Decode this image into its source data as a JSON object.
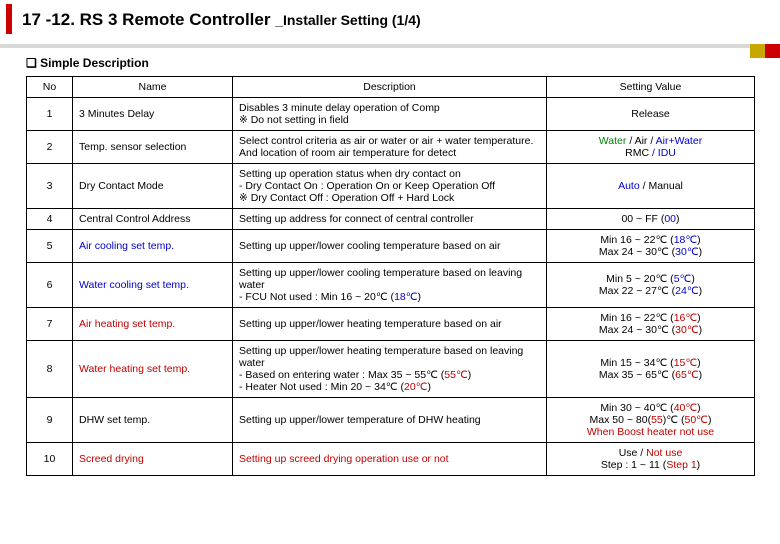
{
  "header": {
    "title": "17 -12. RS 3 Remote Controller",
    "subtitle": "_Installer Setting (1/4)"
  },
  "section": {
    "heading": "Simple Description"
  },
  "columns": {
    "c1": "No",
    "c2": "Name",
    "c3": "Description",
    "c4": "Setting Value"
  },
  "rows": [
    {
      "no": "1",
      "name": [
        {
          "t": "3 Minutes Delay",
          "c": "black"
        }
      ],
      "desc": [
        {
          "t": "Disables 3 minute delay operation of Comp\n※ Do not setting in field",
          "c": "black"
        }
      ],
      "val": [
        {
          "t": "Release",
          "c": "black"
        }
      ]
    },
    {
      "no": "2",
      "name": [
        {
          "t": "Temp. sensor selection",
          "c": "black"
        }
      ],
      "desc": [
        {
          "t": "Select control criteria as air or water or air + water temperature.\nAnd location of room air temperature for detect",
          "c": "black"
        }
      ],
      "val": [
        {
          "t": "Water",
          "c": "green"
        },
        {
          "t": " / Air",
          "c": "black"
        },
        {
          "t": " / ",
          "c": "black"
        },
        {
          "t": "Air+Water",
          "c": "blue"
        },
        {
          "t": "\nRMC",
          "c": "black"
        },
        {
          "t": " / IDU",
          "c": "blue"
        }
      ]
    },
    {
      "no": "3",
      "name": [
        {
          "t": "Dry Contact Mode",
          "c": "black"
        }
      ],
      "desc": [
        {
          "t": "Setting up operation status when dry contact on\n- Dry Contact On : Operation On or Keep Operation Off\n※ Dry Contact Off : Operation Off + Hard Lock",
          "c": "black"
        }
      ],
      "val": [
        {
          "t": "Auto",
          "c": "blue"
        },
        {
          "t": " / Manual",
          "c": "black"
        }
      ]
    },
    {
      "no": "4",
      "name": [
        {
          "t": "Central Control Address",
          "c": "black"
        }
      ],
      "desc": [
        {
          "t": "Setting up address for connect of central controller",
          "c": "black"
        }
      ],
      "val": [
        {
          "t": "00 ~ FF (",
          "c": "black"
        },
        {
          "t": "00",
          "c": "blue"
        },
        {
          "t": ")",
          "c": "black"
        }
      ]
    },
    {
      "no": "5",
      "name": [
        {
          "t": "Air cooling set temp.",
          "c": "blue"
        }
      ],
      "desc": [
        {
          "t": "Setting up upper/lower cooling temperature based on air",
          "c": "black"
        }
      ],
      "val": [
        {
          "t": "Min 16 ~ 22℃ (",
          "c": "black"
        },
        {
          "t": "18℃",
          "c": "blue"
        },
        {
          "t": ")\nMax 24 ~ 30℃ (",
          "c": "black"
        },
        {
          "t": "30℃",
          "c": "blue"
        },
        {
          "t": ")",
          "c": "black"
        }
      ]
    },
    {
      "no": "6",
      "name": [
        {
          "t": "Water cooling set temp.",
          "c": "blue"
        }
      ],
      "desc": [
        {
          "t": "Setting up upper/lower cooling temperature based on leaving water\n- FCU Not used : Min 16 ~ 20℃  (",
          "c": "black"
        },
        {
          "t": "18℃",
          "c": "blue"
        },
        {
          "t": ")",
          "c": "black"
        }
      ],
      "val": [
        {
          "t": "Min 5 ~ 20℃  (",
          "c": "black"
        },
        {
          "t": "5℃",
          "c": "blue"
        },
        {
          "t": ")\nMax 22 ~ 27℃ (",
          "c": "black"
        },
        {
          "t": "24℃",
          "c": "blue"
        },
        {
          "t": ")",
          "c": "black"
        }
      ]
    },
    {
      "no": "7",
      "name": [
        {
          "t": "Air heating set temp.",
          "c": "red"
        }
      ],
      "desc": [
        {
          "t": "Setting up upper/lower heating temperature based on air",
          "c": "black"
        }
      ],
      "val": [
        {
          "t": "Min 16 ~ 22℃ (",
          "c": "black"
        },
        {
          "t": "16℃",
          "c": "red"
        },
        {
          "t": ")\nMax 24 ~ 30℃ (",
          "c": "black"
        },
        {
          "t": "30℃",
          "c": "red"
        },
        {
          "t": ")",
          "c": "black"
        }
      ]
    },
    {
      "no": "8",
      "name": [
        {
          "t": "Water heating set temp.",
          "c": "red"
        }
      ],
      "desc": [
        {
          "t": "Setting up upper/lower heating temperature based on leaving water\n- Based on entering water : Max 35 ~ 55℃ (",
          "c": "black"
        },
        {
          "t": "55℃",
          "c": "red"
        },
        {
          "t": ")\n- Heater Not used :  Min 20 ~ 34℃ (",
          "c": "black"
        },
        {
          "t": "20℃",
          "c": "red"
        },
        {
          "t": ")",
          "c": "black"
        }
      ],
      "val": [
        {
          "t": "Min 15 ~ 34℃ (",
          "c": "black"
        },
        {
          "t": "15℃",
          "c": "red"
        },
        {
          "t": ")\nMax 35 ~ 65℃ (",
          "c": "black"
        },
        {
          "t": "65℃",
          "c": "red"
        },
        {
          "t": ")",
          "c": "black"
        }
      ]
    },
    {
      "no": "9",
      "name": [
        {
          "t": "DHW set temp.",
          "c": "black"
        }
      ],
      "desc": [
        {
          "t": "Setting up upper/lower temperature of DHW heating",
          "c": "black"
        }
      ],
      "val": [
        {
          "t": "Min 30 ~ 40℃ (",
          "c": "black"
        },
        {
          "t": "40℃",
          "c": "red"
        },
        {
          "t": ")\nMax 50 ~ 80(",
          "c": "black"
        },
        {
          "t": "55",
          "c": "red"
        },
        {
          "t": ")℃ (",
          "c": "black"
        },
        {
          "t": "50℃",
          "c": "red"
        },
        {
          "t": ")\n",
          "c": "black"
        },
        {
          "t": "When Boost heater not use",
          "c": "red"
        }
      ]
    },
    {
      "no": "10",
      "name": [
        {
          "t": "Screed drying",
          "c": "red"
        }
      ],
      "desc": [
        {
          "t": "Setting up screed drying operation use or not",
          "c": "red"
        }
      ],
      "val": [
        {
          "t": "Use / ",
          "c": "black"
        },
        {
          "t": "Not use",
          "c": "red"
        },
        {
          "t": "\nStep : 1 ~ 11 (",
          "c": "black"
        },
        {
          "t": "Step 1",
          "c": "red"
        },
        {
          "t": ")",
          "c": "black"
        }
      ]
    }
  ]
}
